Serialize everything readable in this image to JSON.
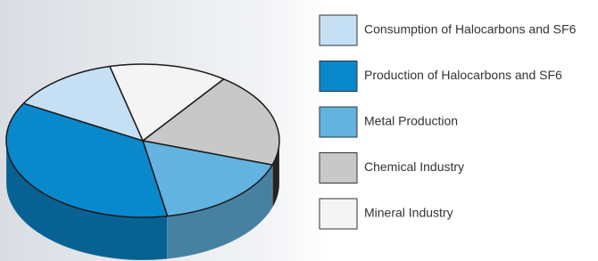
{
  "chart_data": {
    "type": "pie",
    "categories": [
      "Consumption of Halocarbons and SF6",
      "Production of Halocarbons and SF6",
      "Metal Production",
      "Chemical Industry",
      "Mineral Industry"
    ],
    "values": [
      13,
      36,
      17,
      20,
      14
    ],
    "colors": [
      "#c5e0f4",
      "#0a88cc",
      "#62b3df",
      "#c8c8c8",
      "#f4f4f4"
    ]
  }
}
